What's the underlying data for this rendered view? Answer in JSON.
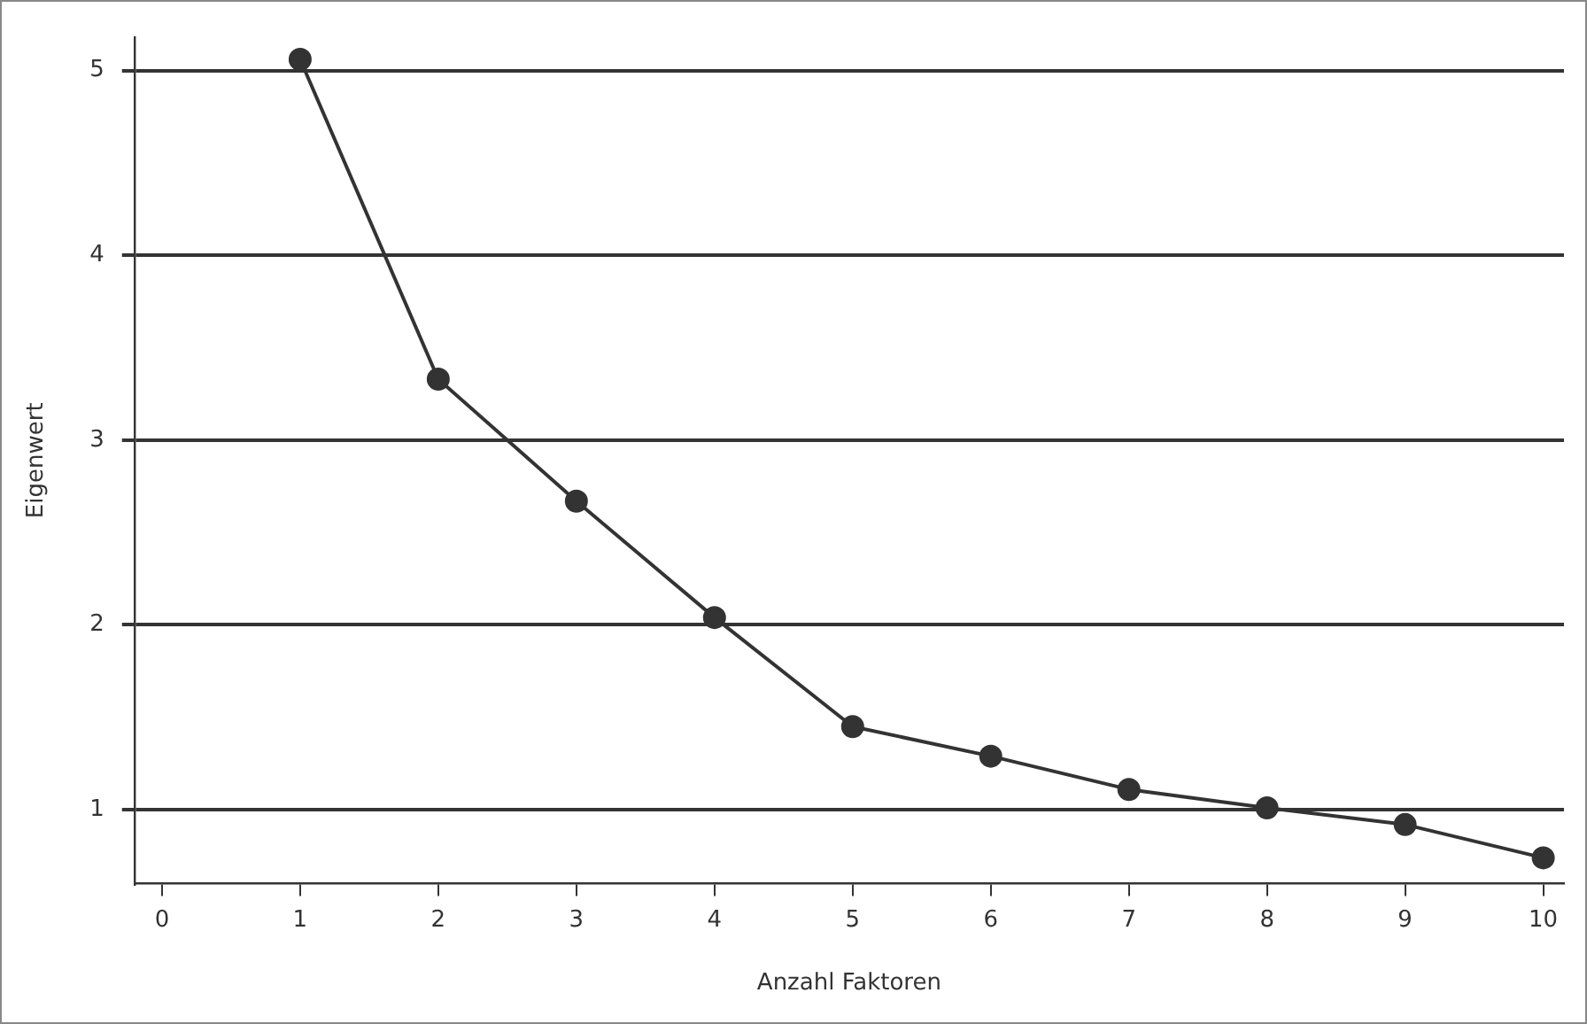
{
  "chart_data": {
    "type": "line",
    "xlabel": "Anzahl Faktoren",
    "ylabel": "Eigenwert",
    "x": [
      1,
      2,
      3,
      4,
      5,
      6,
      7,
      8,
      9,
      10
    ],
    "series": [
      {
        "color": "#333333",
        "values": [
          5.06,
          3.33,
          2.67,
          2.04,
          1.45,
          1.29,
          1.11,
          1.01,
          0.92,
          0.74
        ]
      }
    ],
    "xlim": [
      -0.2,
      10.15
    ],
    "xticks": [
      0,
      1,
      2,
      3,
      4,
      5,
      6,
      7,
      8,
      9,
      10
    ],
    "ylim": [
      0.6,
      5.18
    ],
    "yticks": [
      1,
      2,
      3,
      4,
      5
    ],
    "grid": "y",
    "marker": "circle",
    "line_style": "solid",
    "legend": false
  }
}
